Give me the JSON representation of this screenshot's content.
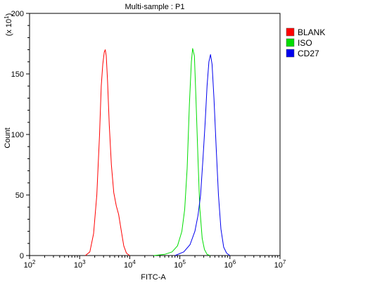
{
  "chart_data": {
    "type": "line",
    "title": "Multi-sample : P1",
    "xlabel": "FITC-A",
    "ylabel": "Count",
    "y_multiplier": "(x 10",
    "y_multiplier_exp": "1",
    "y_multiplier_close": ")",
    "xscale": "log",
    "xlim": [
      100,
      10000000
    ],
    "ylim": [
      0,
      200
    ],
    "x_ticks": [
      {
        "base": "10",
        "exp": "2"
      },
      {
        "base": "10",
        "exp": "3"
      },
      {
        "base": "10",
        "exp": "4"
      },
      {
        "base": "10",
        "exp": "5"
      },
      {
        "base": "10",
        "exp": "6"
      },
      {
        "base": "10",
        "exp": "7"
      }
    ],
    "y_ticks": [
      "0",
      "50",
      "100",
      "150",
      "200"
    ],
    "grid": false,
    "legend_position": "top-right",
    "series": [
      {
        "name": "BLANK",
        "color": "#ff0000",
        "x": [
          1300.0,
          1600.0,
          1900.0,
          2200.0,
          2500.0,
          2700.0,
          2900.0,
          3100.0,
          3250.0,
          3400.0,
          3600.0,
          3900.0,
          4300.0,
          4800.0,
          5400.0,
          6000.0,
          6800.0,
          7600.0,
          8600.0,
          10000.0
        ],
        "y": [
          0,
          3,
          18,
          50,
          100,
          140,
          158,
          168,
          170,
          165,
          145,
          108,
          75,
          52,
          41,
          34,
          20,
          8,
          2,
          0
        ]
      },
      {
        "name": "ISO",
        "color": "#00dd00",
        "x": [
          30000.0,
          50000.0,
          70000.0,
          90000.0,
          110000.0,
          125000.0,
          140000.0,
          155000.0,
          170000.0,
          180000.0,
          195000.0,
          210000.0,
          230000.0,
          250000.0,
          280000.0,
          310000.0,
          350000.0,
          400000.0
        ],
        "y": [
          0,
          1,
          3,
          8,
          20,
          38,
          72,
          125,
          160,
          171,
          165,
          130,
          80,
          40,
          14,
          5,
          1,
          0
        ]
      },
      {
        "name": "CD27",
        "color": "#0000ee",
        "x": [
          80000.0,
          120000.0,
          160000.0,
          200000.0,
          230000.0,
          260000.0,
          290000.0,
          320000.0,
          350000.0,
          380000.0,
          410000.0,
          440000.0,
          480000.0,
          530000.0,
          590000.0,
          660000.0,
          750000.0,
          860000.0,
          1000000.0
        ],
        "y": [
          0,
          3,
          9,
          20,
          33,
          50,
          80,
          110,
          140,
          160,
          166,
          158,
          130,
          90,
          50,
          22,
          7,
          2,
          0
        ]
      }
    ]
  }
}
